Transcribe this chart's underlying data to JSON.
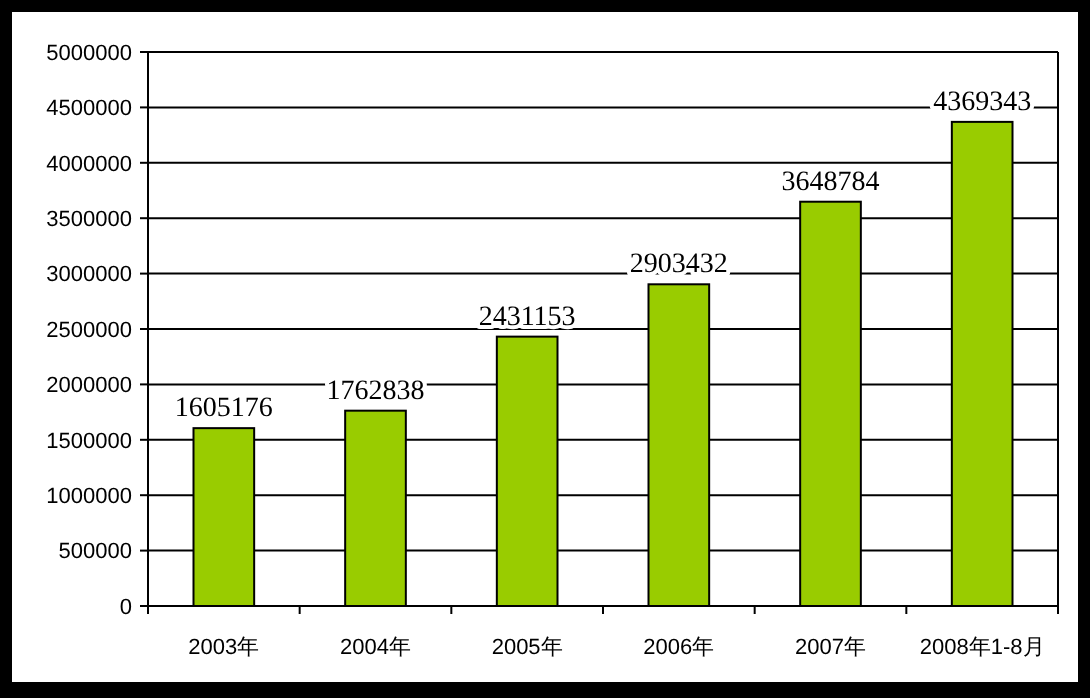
{
  "chart_data": {
    "type": "bar",
    "categories": [
      "2003年",
      "2004年",
      "2005年",
      "2006年",
      "2007年",
      "2008年1-8月"
    ],
    "values": [
      1605176,
      1762838,
      2431153,
      2903432,
      3648784,
      4369343
    ],
    "color": "#99cc00",
    "data_labels": true,
    "ylim": [
      0,
      5000000
    ],
    "yticks": [
      0,
      500000,
      1000000,
      1500000,
      2000000,
      2500000,
      3000000,
      3500000,
      4000000,
      4500000,
      5000000
    ],
    "grid": "y"
  }
}
